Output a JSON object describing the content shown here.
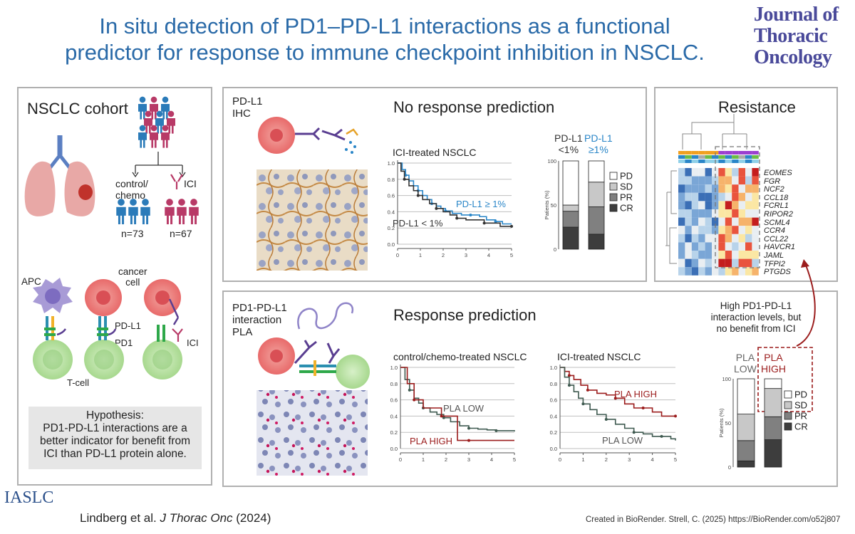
{
  "header": {
    "title_line1": "In situ detection of PD1–PD-L1 interactions as a functional",
    "title_line2": "predictor for response to immune checkpoint inhibition in NSCLC.",
    "journal_logo": [
      "Journal of",
      "Thoracic",
      "Oncology"
    ]
  },
  "cohort": {
    "title": "NSCLC cohort",
    "arm1_label": "control/\nchemo",
    "arm2_label": "ICI",
    "n1": "n=73",
    "n2": "n=67",
    "cell_labels": {
      "apc": "APC",
      "cancer_cell": "cancer\ncell",
      "pdl1": "PD-L1",
      "pd1": "PD1",
      "ici": "ICI",
      "tcell": "T-cell"
    },
    "hypothesis": [
      "Hypothesis:",
      "PD1-PD-L1 interactions are a",
      "better indicator for benefit from",
      "ICI than PD-L1 protein alone."
    ]
  },
  "ihc_panel": {
    "method_label": "PD-L1\nIHC",
    "title": "No response prediction",
    "km_title": "ICI-treated NSCLC",
    "bar_header_low": "PD-L1\n<1%",
    "bar_header_high": "PD-L1\n≥1%",
    "legend": [
      "PD",
      "SD",
      "PR",
      "CR"
    ]
  },
  "pla_panel": {
    "method_label": "PD1-PD-L1\ninteraction\nPLA",
    "title": "Response prediction",
    "km1_title": "control/chemo-treated NSCLC",
    "km2_title": "ICI-treated NSCLC"
  },
  "resistance": {
    "title": "Resistance",
    "genes": [
      "EOMES",
      "FGR",
      "NCF2",
      "CCL18",
      "FCRL1",
      "RIPOR2",
      "SCML4",
      "CCR4",
      "CCL22",
      "HAVCR1",
      "JAML",
      "TFPI2",
      "PTGDS"
    ],
    "callout": "High PD1-PD-L1\ninteraction levels, but\nno benefit from ICI",
    "bar_header_low": "PLA\nLOW",
    "bar_header_high": "PLA\nHIGH",
    "legend": [
      "PD",
      "SD",
      "PR",
      "CR"
    ]
  },
  "footer": {
    "society": "IASLC",
    "citation_authors": "Lindberg et al.",
    "citation_journal": "J Thorac Onc",
    "citation_year": "(2024)",
    "credit": "Created in BioRender. Strell, C. (2025) https://BioRender.com/o52j807"
  },
  "colors": {
    "title_blue": "#2a6aa8",
    "pdl1_high_blue": "#2a86c8",
    "pla_high_red": "#9b1c1c",
    "pla_low_green": "#3f5a50",
    "arm_control": "#2b7bb9",
    "arm_ici": "#b83a67"
  },
  "chart_data": [
    {
      "type": "line",
      "title": "ICI-treated NSCLC",
      "xlim": [
        0,
        5
      ],
      "ylim": [
        0,
        1
      ],
      "x_ticks": [
        0,
        1,
        2,
        3,
        4,
        5
      ],
      "y_ticks": [
        0.0,
        0.2,
        0.4,
        0.6,
        0.8,
        1.0
      ],
      "series": [
        {
          "name": "PD-L1 ≥ 1%",
          "color": "#2a86c8",
          "x": [
            0,
            0.2,
            0.35,
            0.5,
            0.7,
            0.9,
            1.1,
            1.3,
            1.5,
            1.7,
            1.9,
            2.1,
            2.4,
            2.8,
            3.2,
            3.6,
            3.9,
            4.3,
            4.6,
            5.0
          ],
          "y": [
            1.0,
            0.92,
            0.85,
            0.78,
            0.72,
            0.66,
            0.6,
            0.55,
            0.5,
            0.47,
            0.44,
            0.41,
            0.38,
            0.36,
            0.36,
            0.34,
            0.3,
            0.28,
            0.25,
            0.25
          ]
        },
        {
          "name": "PD-L1 < 1%",
          "color": "#333333",
          "x": [
            0,
            0.15,
            0.3,
            0.5,
            0.7,
            0.9,
            1.1,
            1.4,
            1.7,
            2.0,
            2.3,
            2.6,
            3.0,
            3.4,
            3.8,
            4.2,
            4.5,
            5.0
          ],
          "y": [
            1.0,
            0.9,
            0.8,
            0.72,
            0.66,
            0.6,
            0.55,
            0.5,
            0.44,
            0.4,
            0.36,
            0.32,
            0.3,
            0.3,
            0.26,
            0.26,
            0.22,
            0.22
          ]
        }
      ]
    },
    {
      "type": "bar",
      "stacked": true,
      "categories": [
        "PD-L1 <1%",
        "PD-L1 ≥1%"
      ],
      "ylabel": "Patients (%)",
      "ylim": [
        0,
        100
      ],
      "y_ticks": [
        0,
        50,
        100
      ],
      "series": [
        {
          "name": "CR",
          "color": "#3d3d3d",
          "values": [
            25,
            17
          ]
        },
        {
          "name": "PR",
          "color": "#808080",
          "values": [
            18,
            31
          ]
        },
        {
          "name": "SD",
          "color": "#c8c8c8",
          "values": [
            7,
            28
          ]
        },
        {
          "name": "PD",
          "color": "#ffffff",
          "values": [
            50,
            24
          ]
        }
      ]
    },
    {
      "type": "line",
      "title": "control/chemo-treated NSCLC",
      "xlim": [
        0,
        5
      ],
      "ylim": [
        0,
        1
      ],
      "x_ticks": [
        0,
        1,
        2,
        3,
        4,
        5
      ],
      "y_ticks": [
        0.0,
        0.2,
        0.4,
        0.6,
        0.8,
        1.0
      ],
      "series": [
        {
          "name": "PLA LOW",
          "color": "#3f5a50",
          "x": [
            0,
            0.2,
            0.4,
            0.6,
            0.8,
            1.0,
            1.3,
            1.6,
            1.9,
            2.2,
            2.6,
            3.0,
            3.4,
            3.8,
            4.2,
            4.6,
            5.0
          ],
          "y": [
            1.0,
            0.85,
            0.72,
            0.62,
            0.56,
            0.5,
            0.45,
            0.42,
            0.38,
            0.33,
            0.28,
            0.25,
            0.24,
            0.23,
            0.22,
            0.22,
            0.21
          ]
        },
        {
          "name": "PLA HIGH",
          "color": "#9b1c1c",
          "x": [
            0,
            0.3,
            0.6,
            1.0,
            1.4,
            1.8,
            2.2,
            2.5,
            3.0,
            4.0,
            5.0
          ],
          "y": [
            1.0,
            0.8,
            0.6,
            0.5,
            0.5,
            0.4,
            0.4,
            0.1,
            0.1,
            0.1,
            0.1
          ]
        }
      ]
    },
    {
      "type": "line",
      "title": "ICI-treated NSCLC",
      "xlim": [
        0,
        5
      ],
      "ylim": [
        0,
        1
      ],
      "x_ticks": [
        0,
        1,
        2,
        3,
        4,
        5
      ],
      "y_ticks": [
        0.0,
        0.2,
        0.4,
        0.6,
        0.8,
        1.0
      ],
      "series": [
        {
          "name": "PLA HIGH",
          "color": "#9b1c1c",
          "x": [
            0,
            0.2,
            0.4,
            0.6,
            0.9,
            1.2,
            1.6,
            2.0,
            2.4,
            2.8,
            3.2,
            3.6,
            4.0,
            4.4,
            5.0
          ],
          "y": [
            1.0,
            0.95,
            0.9,
            0.85,
            0.78,
            0.72,
            0.68,
            0.66,
            0.62,
            0.55,
            0.5,
            0.5,
            0.45,
            0.4,
            0.4
          ]
        },
        {
          "name": "PLA LOW",
          "color": "#3f5a50",
          "x": [
            0,
            0.2,
            0.4,
            0.6,
            0.8,
            1.0,
            1.3,
            1.6,
            2.0,
            2.4,
            2.8,
            3.2,
            3.6,
            4.0,
            4.4,
            4.8,
            5.0
          ],
          "y": [
            1.0,
            0.88,
            0.78,
            0.7,
            0.62,
            0.55,
            0.48,
            0.42,
            0.36,
            0.3,
            0.25,
            0.2,
            0.18,
            0.15,
            0.15,
            0.12,
            0.1
          ]
        }
      ]
    },
    {
      "type": "bar",
      "stacked": true,
      "categories": [
        "PLA LOW",
        "PLA HIGH"
      ],
      "ylabel": "Patients (%)",
      "ylim": [
        0,
        100
      ],
      "y_ticks": [
        0,
        50,
        100
      ],
      "series": [
        {
          "name": "CR",
          "color": "#3d3d3d",
          "values": [
            7,
            31
          ]
        },
        {
          "name": "PR",
          "color": "#808080",
          "values": [
            23,
            26
          ]
        },
        {
          "name": "SD",
          "color": "#c8c8c8",
          "values": [
            30,
            32
          ]
        },
        {
          "name": "PD",
          "color": "#ffffff",
          "values": [
            40,
            11
          ]
        }
      ]
    },
    {
      "type": "heatmap",
      "rows": [
        "EOMES",
        "FGR",
        "NCF2",
        "CCL18",
        "FCRL1",
        "RIPOR2",
        "SCML4",
        "CCR4",
        "CCL22",
        "HAVCR1",
        "JAML",
        "TFPI2",
        "PTGDS"
      ]
    }
  ]
}
